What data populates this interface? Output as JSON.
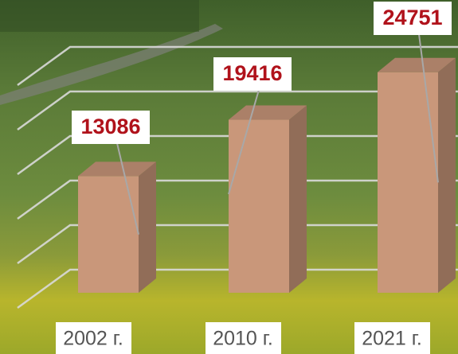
{
  "chart_data": {
    "type": "bar3d",
    "categories": [
      "2002 г.",
      "2010 г.",
      "2021 г."
    ],
    "values": [
      13086,
      19416,
      24751
    ],
    "color": "#c9977a",
    "ylim": [
      0,
      30000
    ],
    "yticks": [
      0,
      5000,
      10000,
      15000,
      20000,
      25000,
      30000
    ],
    "grid": true
  }
}
